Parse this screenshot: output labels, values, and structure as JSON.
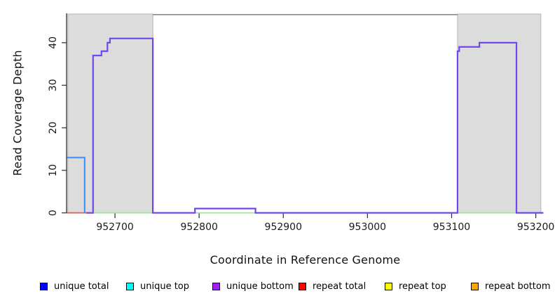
{
  "chart_data": {
    "type": "step-line",
    "title": "",
    "xlabel": "Coordinate in Reference Genome",
    "ylabel": "Read Coverage Depth",
    "xlim": [
      952642.5,
      953209.5
    ],
    "ylim": [
      0,
      46.9
    ],
    "x_ticks": [
      952700,
      952800,
      952900,
      953000,
      953100,
      953200
    ],
    "y_ticks": [
      0,
      10,
      20,
      30,
      40
    ],
    "grid": false,
    "legend_position": "bottom",
    "shaded_regions": [
      {
        "name": "shaded-region-left",
        "from": 952644,
        "to": 952745
      },
      {
        "name": "shaded-region-right",
        "from": 953107,
        "to": 953206
      }
    ],
    "top_boundary_line": {
      "from": 952745,
      "to": 953107,
      "value": 46.6
    },
    "series": [
      {
        "name": "red-baseline-segment",
        "color": "#ee5555",
        "width": 1.8,
        "segments": [
          [
            [
              952643,
              0
            ],
            [
              952666,
              0
            ]
          ]
        ]
      },
      {
        "name": "green-baseline-segments",
        "color": "#90ee90",
        "width": 1.8,
        "segments": [
          [
            [
              952675,
              0
            ],
            [
              952745,
              0
            ]
          ],
          [
            [
              952795,
              0
            ],
            [
              952867,
              0
            ]
          ],
          [
            [
              953107,
              0
            ],
            [
              953177,
              0
            ]
          ]
        ]
      },
      {
        "name": "unique-top-steps",
        "color": "#3a8cf5",
        "width": 2,
        "segments": [
          [
            [
              952643,
              13
            ],
            [
              952664,
              13
            ],
            [
              952664,
              0
            ]
          ]
        ]
      },
      {
        "name": "unique-bottom-steps",
        "color": "#7048ee",
        "width": 2.2,
        "segments": [
          [
            [
              952666,
              0
            ],
            [
              952674,
              0
            ],
            [
              952674,
              37
            ],
            [
              952684,
              37
            ],
            [
              952684,
              38
            ],
            [
              952691,
              38
            ],
            [
              952691,
              40
            ],
            [
              952694,
              40
            ],
            [
              952694,
              41
            ],
            [
              952745,
              41
            ],
            [
              952745,
              0
            ],
            [
              952795,
              0
            ],
            [
              952795,
              1
            ],
            [
              952867,
              1
            ],
            [
              952867,
              0
            ],
            [
              953107,
              0
            ],
            [
              953107,
              38
            ],
            [
              953109,
              38
            ],
            [
              953109,
              39
            ],
            [
              953133,
              39
            ],
            [
              953133,
              40
            ],
            [
              953177,
              40
            ],
            [
              953177,
              0
            ],
            [
              953209,
              0
            ]
          ]
        ]
      }
    ]
  },
  "legend": {
    "items": [
      {
        "label": "unique total",
        "color": "#0000ff"
      },
      {
        "label": "unique top",
        "color": "#00ffff"
      },
      {
        "label": "unique bottom",
        "color": "#a020f0"
      },
      {
        "label": "repeat total",
        "color": "#ff0000"
      },
      {
        "label": "repeat top",
        "color": "#ffff00"
      },
      {
        "label": "repeat bottom",
        "color": "#ffa500"
      }
    ]
  },
  "style_colors": {
    "shaded_fill": "#dcdcdc",
    "shaded_border": "#b4b4b4",
    "top_line": "#8a8a8a",
    "axis": "#2b2b2b",
    "tick_label": "#1a1a1a"
  }
}
